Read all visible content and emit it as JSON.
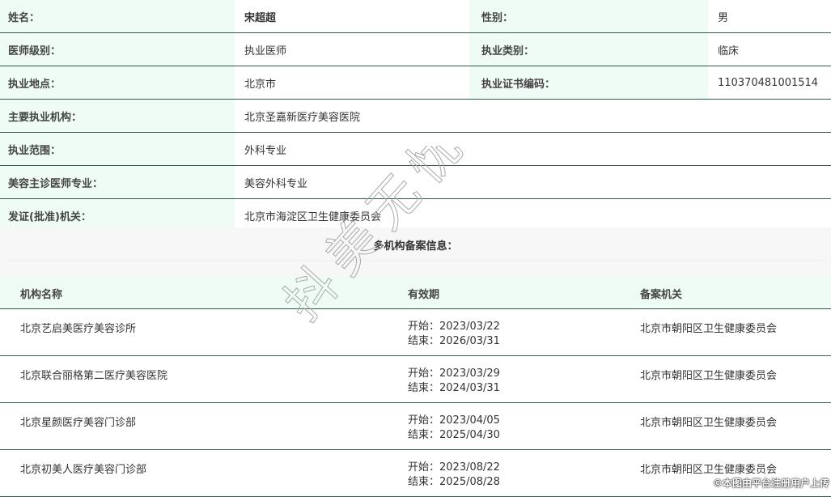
{
  "info": [
    {
      "l1": "姓名：",
      "v1": "宋超超",
      "l2": "性别：",
      "v2": "男"
    },
    {
      "l1": "医师级别：",
      "v1": "执业医师",
      "l2": "执业类别：",
      "v2": "临床"
    },
    {
      "l1": "执业地点：",
      "v1": "北京市",
      "l2": "执业证书编码：",
      "v2": "110370481001514"
    },
    {
      "l1": "主要执业机构：",
      "v1": "北京圣嘉新医疗美容医院"
    },
    {
      "l1": "执业范围：",
      "v1": "外科专业"
    },
    {
      "l1": "美容主诊医师专业：",
      "v1": "美容外科专业"
    },
    {
      "l1": "发证(批准)机关：",
      "v1": "北京市海淀区卫生健康委员会"
    }
  ],
  "section_title": "多机构备案信息：",
  "table": {
    "headers": [
      "机构名称",
      "有效期",
      "备案机关"
    ],
    "rows": [
      {
        "name": "北京艺启美医疗美容诊所",
        "start": "开始：2023/03/22",
        "end": "结束：2026/03/31",
        "agency": "北京市朝阳区卫生健康委员会"
      },
      {
        "name": "北京联合丽格第二医疗美容医院",
        "start": "开始：2023/03/29",
        "end": "结束：2024/03/31",
        "agency": "北京市朝阳区卫生健康委员会"
      },
      {
        "name": "北京星颜医疗美容门诊部",
        "start": "开始：2023/04/05",
        "end": "结束：2025/04/30",
        "agency": "北京市朝阳区卫生健康委员会"
      },
      {
        "name": "北京初美人医疗美容门诊部",
        "start": "开始：2023/08/22",
        "end": "结束：2025/08/28",
        "agency": "北京市朝阳区卫生健康委员会"
      }
    ]
  },
  "watermark": "抖美无忧",
  "copyright": "©本图由平台注册用户上传"
}
